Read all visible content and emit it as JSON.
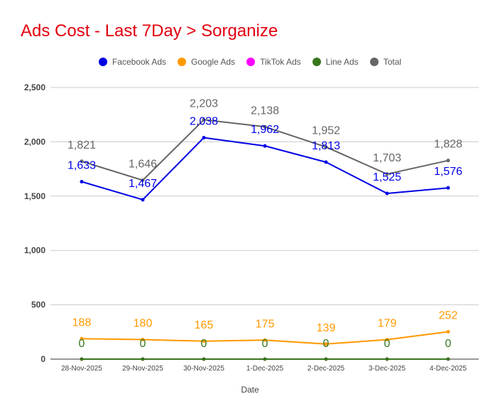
{
  "chart_data": {
    "type": "line",
    "title": "Ads Cost - Last 7Day > Sorganize",
    "xlabel": "Date",
    "ylabel": "",
    "ylim": [
      0,
      2500
    ],
    "yticks": [
      0,
      500,
      1000,
      1500,
      2000,
      2500
    ],
    "ytick_labels": [
      "0",
      "500",
      "1,000",
      "1,500",
      "2,000",
      "2,500"
    ],
    "grid": true,
    "legend_position": "top-center",
    "categories": [
      "28-Nov-2025",
      "29-Nov-2025",
      "30-Nov-2025",
      "1-Dec-2025",
      "2-Dec-2025",
      "3-Dec-2025",
      "4-Dec-2025"
    ],
    "series": [
      {
        "name": "Facebook Ads",
        "color": "#0000e6",
        "values": [
          1633,
          1467,
          2038,
          1962,
          1813,
          1525,
          1576
        ],
        "labels": [
          "1,633",
          "1,467",
          "2,038",
          "1,962",
          "1,813",
          "1,525",
          "1,576"
        ]
      },
      {
        "name": "Google Ads",
        "color": "#ff9900",
        "values": [
          188,
          180,
          165,
          175,
          139,
          179,
          252
        ],
        "labels": [
          "188",
          "180",
          "165",
          "175",
          "139",
          "179",
          "252"
        ]
      },
      {
        "name": "TikTok Ads",
        "color": "#ff00ff",
        "values": [
          0,
          0,
          0,
          0,
          0,
          0,
          0
        ],
        "labels": []
      },
      {
        "name": "Line Ads",
        "color": "#38761d",
        "values": [
          0,
          0,
          0,
          0,
          0,
          0,
          0
        ],
        "labels": [
          "0",
          "0",
          "0",
          "0",
          "0",
          "0",
          "0"
        ]
      },
      {
        "name": "Total",
        "color": "#666666",
        "values": [
          1821,
          1646,
          2203,
          2138,
          1952,
          1703,
          1828
        ],
        "labels": [
          "1,821",
          "1,646",
          "2,203",
          "2,138",
          "1,952",
          "1,703",
          "1,828"
        ]
      }
    ]
  }
}
